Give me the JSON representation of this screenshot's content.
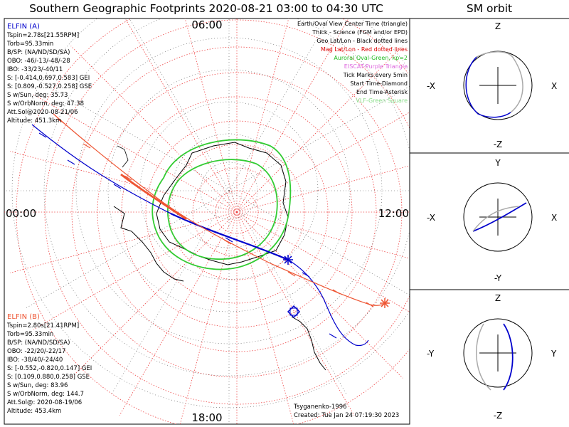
{
  "title": "Southern Geographic Footprints 2020-08-21 03:00 to 04:30 UTC",
  "orbit_title": "SM orbit",
  "time_labels": {
    "top": "06:00",
    "left": "00:00",
    "right": "12:00",
    "bottom": "18:00"
  },
  "elfin_a": {
    "name": "ELFIN (A)",
    "color": "#0000cc",
    "lines": [
      "Tspin=2.78s[21.55RPM]",
      "Torb=95.33min",
      "B/SP: (NA/ND/SD/SA)",
      "OBO: -46/-13/-48/-28",
      "IBO: -33/23/-40/11",
      "S: [-0.414,0.697,0.583] GEI",
      "S: [0.809,-0.527,0.258] GSE",
      "S w/Sun, deg: 35.73",
      "S w/OrbNorm, deg: 47.38",
      "Att.Sol@2020-08-21/06",
      "Altitude: 451.3km"
    ]
  },
  "elfin_b": {
    "name": "ELFIN (B)",
    "color": "#ee5533",
    "lines": [
      "Tspin=2.80s[21.41RPM]",
      "Torb=95.33min",
      "B/SP: (NA/ND/SD/SA)",
      "OBO: -22/20/-22/17",
      "IBO: -38/40/-24/40",
      "S: [-0.552,-0.820,0.147] GEI",
      "S: [0.109,0.880,0.258] GSE",
      "S w/Sun, deg: 83.96",
      "S w/OrbNorm, deg: 144.7",
      "Att.Sol@: 2020-08-19/06",
      "Altitude: 453.4km"
    ]
  },
  "legend": [
    {
      "text": "Earth/Oval View Center Time (triangle)",
      "color": "#000000"
    },
    {
      "text": "Thick - Science (FGM and/or EPD)",
      "color": "#000000"
    },
    {
      "text": "Geo Lat/Lon - Black dotted lines",
      "color": "#000000"
    },
    {
      "text": "Mag Lat/Lon - Red dotted lines",
      "color": "#dd0000"
    },
    {
      "text": "Auroral Oval-Green, kp=2",
      "color": "#22bb22"
    },
    {
      "text": "EISCAT-Purple Triangle",
      "color": "#dd66dd"
    },
    {
      "text": "Tick Marks every 5min",
      "color": "#000000"
    },
    {
      "text": "Start Time-Diamond",
      "color": "#000000"
    },
    {
      "text": "End Time-Asterisk",
      "color": "#000000"
    },
    {
      "text": "VLF-Green Square",
      "color": "#88dd88"
    }
  ],
  "footer": {
    "model": "Tsyganenko-1996",
    "created": "Created: Tue Jan 24 07:19:30 2023"
  },
  "orbit_panels": [
    {
      "top": "Z",
      "bottom": "-Z",
      "left": "-X",
      "right": "X"
    },
    {
      "top": "Y",
      "bottom": "-Y",
      "left": "-X",
      "right": "X"
    },
    {
      "top": "Z",
      "bottom": "-Z",
      "left": "-Y",
      "right": "Y"
    }
  ],
  "chart_data": {
    "type": "polar-map",
    "description_hemisphere": "southern",
    "time_range_utc": [
      "2020-08-21 03:00",
      "2020-08-21 04:30"
    ],
    "mlt_labels": [
      "00:00",
      "06:00",
      "12:00",
      "18:00"
    ],
    "grid": true
  }
}
